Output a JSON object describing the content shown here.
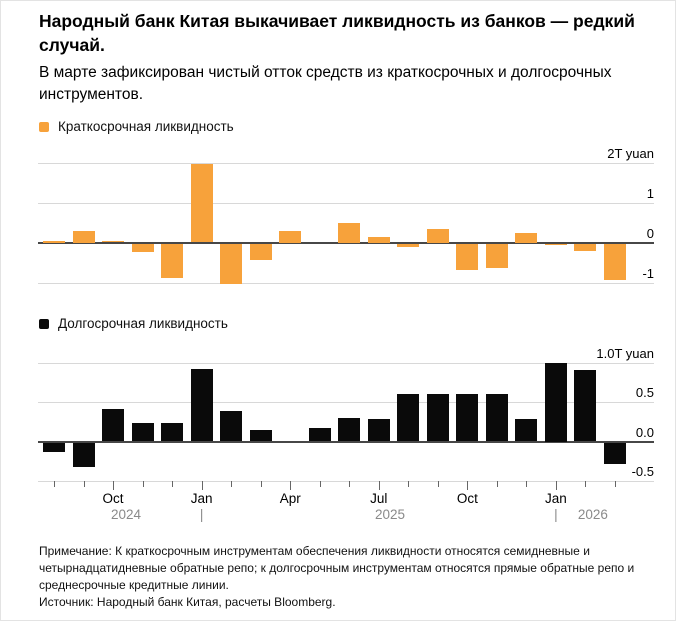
{
  "page": {
    "title": "Народный банк Китая выкачивает ликвидность из банков — редкий случай.",
    "subtitle": "В марте зафиксирован чистый отток средств из краткосрочных и долгосрочных инструментов.",
    "note": "Примечание: К краткосрочным инструментам обеспечения ликвидности относятся семидневные и четырнадцатидневные обратные репо; к долгосрочным инструментам относятся прямые обратные репо и среднесрочные кредитные линии.",
    "source": "Источник: Народный банк Китая, расчеты Bloomberg."
  },
  "colors": {
    "short_term_orange": "#F7A23B",
    "long_term_black": "#0A0A0A",
    "zero_line": "#474747",
    "gridline": "#D8D8D8",
    "year_text": "#8A8A8A"
  },
  "chart_data": [
    {
      "type": "bar",
      "title": "Краткосрочная ликвидность",
      "unit": "T yuan",
      "legend_position": "top-left",
      "grid": true,
      "ylim": [
        -1,
        2
      ],
      "y_axis": {
        "ticks": [
          {
            "value": 2,
            "label": "2T yuan"
          },
          {
            "value": 1,
            "label": "1"
          },
          {
            "value": 0,
            "label": "0"
          },
          {
            "value": -1,
            "label": "-1"
          }
        ]
      },
      "x": [
        "Aug 2024",
        "Sep 2024",
        "Oct 2024",
        "Nov 2024",
        "Dec 2024",
        "Jan 2025",
        "Feb 2025",
        "Mar 2025",
        "Apr 2025",
        "May 2025",
        "Jun 2025",
        "Jul 2025",
        "Aug 2025",
        "Sep 2025",
        "Oct 2025",
        "Nov 2025",
        "Dec 2025",
        "Jan 2026",
        "Feb 2026",
        "Mar 2026"
      ],
      "values": [
        0.05,
        0.3,
        0.03,
        -0.22,
        -0.86,
        1.96,
        -1.0,
        -0.4,
        0.3,
        0.0,
        0.5,
        0.15,
        -0.08,
        0.35,
        -0.65,
        -0.6,
        0.25,
        -0.04,
        -0.18,
        -0.92
      ]
    },
    {
      "type": "bar",
      "title": "Долгосрочная ликвидность",
      "unit": "T yuan",
      "legend_position": "top-left",
      "grid": true,
      "ylim": [
        -0.5,
        1.0
      ],
      "y_axis": {
        "ticks": [
          {
            "value": 1.0,
            "label": "1.0T yuan"
          },
          {
            "value": 0.5,
            "label": "0.5"
          },
          {
            "value": 0.0,
            "label": "0.0"
          },
          {
            "value": -0.5,
            "label": "-0.5"
          }
        ]
      },
      "x": [
        "Aug 2024",
        "Sep 2024",
        "Oct 2024",
        "Nov 2024",
        "Dec 2024",
        "Jan 2025",
        "Feb 2025",
        "Mar 2025",
        "Apr 2025",
        "May 2025",
        "Jun 2025",
        "Jul 2025",
        "Aug 2025",
        "Sep 2025",
        "Oct 2025",
        "Nov 2025",
        "Dec 2025",
        "Jan 2026",
        "Feb 2026",
        "Mar 2026"
      ],
      "values": [
        -0.12,
        -0.31,
        0.41,
        0.24,
        0.24,
        0.92,
        0.39,
        0.15,
        0.0,
        0.17,
        0.3,
        0.28,
        0.6,
        0.6,
        0.6,
        0.6,
        0.28,
        1.0,
        0.9,
        -0.27
      ],
      "x_axis": {
        "month_labels": [
          {
            "slot": 2,
            "label": "Oct"
          },
          {
            "slot": 5,
            "label": "Jan"
          },
          {
            "slot": 8,
            "label": "Apr"
          },
          {
            "slot": 11,
            "label": "Jul"
          },
          {
            "slot": 14,
            "label": "Oct"
          },
          {
            "slot": 17,
            "label": "Jan"
          }
        ],
        "year_row": [
          {
            "slot": 2.44,
            "label": "2024"
          },
          {
            "slot": 5,
            "label": "|"
          },
          {
            "slot": 11.38,
            "label": "2025"
          },
          {
            "slot": 17,
            "label": "|"
          },
          {
            "slot": 18.25,
            "label": "2026"
          }
        ]
      }
    }
  ]
}
